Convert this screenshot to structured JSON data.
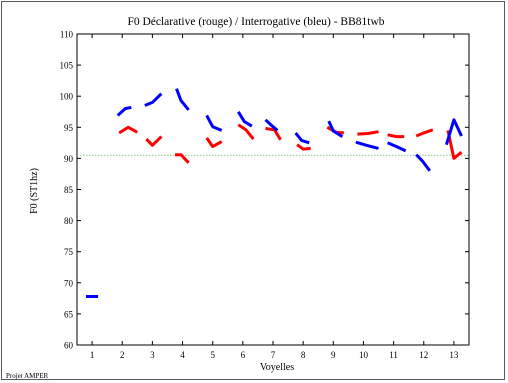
{
  "footer_text": "Projet AMPER",
  "chart_data": {
    "type": "line",
    "title": "F0 Déclarative (rouge) / Interrogative (bleu) - BB81twb",
    "xlabel": "Voyelles",
    "ylabel": "F0 (ST1hz)",
    "xlim": [
      0.5,
      13.5
    ],
    "ylim": [
      60,
      110
    ],
    "xticks": [
      "1",
      "2",
      "3",
      "4",
      "5",
      "6",
      "7",
      "8",
      "9",
      "10",
      "11",
      "12",
      "13"
    ],
    "yticks": [
      "60",
      "65",
      "70",
      "75",
      "80",
      "85",
      "90",
      "95",
      "100",
      "105",
      "110"
    ],
    "grid": false,
    "reference_line": {
      "y": 90.5,
      "color": "#7ccd7c",
      "style": "dotted"
    },
    "series": [
      {
        "color": "#ff0000",
        "segments": [
          [
            [
              1.9,
              94.1
            ],
            [
              2.2,
              95.0
            ],
            [
              2.5,
              94.2
            ]
          ],
          [
            [
              2.8,
              93.1
            ],
            [
              3.0,
              92.1
            ],
            [
              3.3,
              93.5
            ]
          ],
          [
            [
              3.75,
              90.6
            ],
            [
              3.95,
              90.6
            ],
            [
              4.2,
              89.3
            ]
          ],
          [
            [
              4.8,
              93.3
            ],
            [
              5.0,
              91.9
            ],
            [
              5.3,
              92.7
            ]
          ],
          [
            [
              5.85,
              95.4
            ],
            [
              6.1,
              94.6
            ],
            [
              6.35,
              93.1
            ]
          ],
          [
            [
              6.75,
              94.8
            ],
            [
              7.05,
              94.6
            ],
            [
              7.25,
              93.0
            ]
          ],
          [
            [
              7.8,
              92.2
            ],
            [
              8.0,
              91.5
            ],
            [
              8.25,
              91.6
            ]
          ],
          [
            [
              8.8,
              95.0
            ],
            [
              9.1,
              94.2
            ],
            [
              9.35,
              94.1
            ]
          ],
          [
            [
              9.8,
              93.9
            ],
            [
              10.15,
              94.0
            ],
            [
              10.5,
              94.3
            ]
          ],
          [
            [
              10.8,
              93.8
            ],
            [
              11.1,
              93.5
            ],
            [
              11.35,
              93.5
            ]
          ],
          [
            [
              11.75,
              93.6
            ],
            [
              12.0,
              94.1
            ],
            [
              12.3,
              94.6
            ]
          ],
          [
            [
              12.8,
              94.5
            ],
            [
              13.0,
              90.0
            ],
            [
              13.25,
              91.0
            ]
          ]
        ]
      },
      {
        "color": "#0000ff",
        "segments": [
          [
            [
              0.8,
              67.8
            ],
            [
              1.2,
              67.8
            ]
          ],
          [
            [
              1.85,
              96.9
            ],
            [
              2.1,
              98.0
            ],
            [
              2.3,
              98.2
            ]
          ],
          [
            [
              2.75,
              98.5
            ],
            [
              3.0,
              99.0
            ],
            [
              3.3,
              100.4
            ]
          ],
          [
            [
              3.8,
              101.2
            ],
            [
              3.95,
              99.3
            ],
            [
              4.2,
              97.8
            ]
          ],
          [
            [
              4.8,
              96.9
            ],
            [
              5.0,
              95.1
            ],
            [
              5.3,
              94.5
            ]
          ],
          [
            [
              5.85,
              97.5
            ],
            [
              6.05,
              95.9
            ],
            [
              6.3,
              95.2
            ]
          ],
          [
            [
              6.75,
              96.2
            ],
            [
              6.95,
              95.3
            ],
            [
              7.15,
              94.5
            ]
          ],
          [
            [
              7.75,
              94.1
            ],
            [
              7.95,
              92.9
            ],
            [
              8.2,
              92.5
            ]
          ],
          [
            [
              8.85,
              96.0
            ],
            [
              9.0,
              94.4
            ],
            [
              9.3,
              93.5
            ]
          ],
          [
            [
              9.75,
              92.6
            ],
            [
              10.1,
              92.1
            ],
            [
              10.5,
              91.6
            ]
          ],
          [
            [
              10.8,
              92.5
            ],
            [
              11.1,
              91.9
            ],
            [
              11.4,
              91.2
            ]
          ],
          [
            [
              11.75,
              90.6
            ],
            [
              11.95,
              89.6
            ],
            [
              12.2,
              88.0
            ]
          ],
          [
            [
              12.75,
              92.2
            ],
            [
              13.0,
              96.2
            ],
            [
              13.25,
              93.6
            ]
          ]
        ]
      }
    ]
  }
}
